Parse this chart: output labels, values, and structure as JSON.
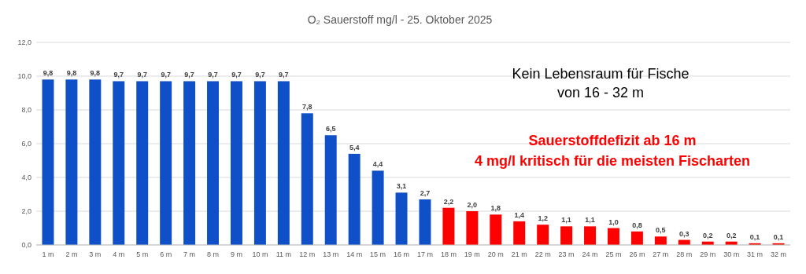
{
  "chart_data": {
    "type": "bar",
    "title": "O₂ Sauerstoff  mg/l - 25. Oktober 2025",
    "categories": [
      "1 m",
      "2 m",
      "3 m",
      "4 m",
      "5 m",
      "6 m",
      "7 m",
      "8 m",
      "9 m",
      "10 m",
      "11 m",
      "12 m",
      "13 m",
      "14 m",
      "15 m",
      "16 m",
      "17 m",
      "18 m",
      "19 m",
      "20 m",
      "21 m",
      "22 m",
      "23 m",
      "24 m",
      "25 m",
      "26 m",
      "27 m",
      "28 m",
      "29 m",
      "30 m",
      "31 m",
      "32 m"
    ],
    "values": [
      9.8,
      9.8,
      9.8,
      9.7,
      9.7,
      9.7,
      9.7,
      9.7,
      9.7,
      9.7,
      9.7,
      7.8,
      6.5,
      5.4,
      4.4,
      3.1,
      2.7,
      2.2,
      2.0,
      1.8,
      1.4,
      1.2,
      1.1,
      1.1,
      1.0,
      0.8,
      0.5,
      0.3,
      0.2,
      0.2,
      0.1,
      0.1
    ],
    "value_labels": [
      "9,8",
      "9,8",
      "9,8",
      "9,7",
      "9,7",
      "9,7",
      "9,7",
      "9,7",
      "9,7",
      "9,7",
      "9,7",
      "7,8",
      "6,5",
      "5,4",
      "4,4",
      "3,1",
      "2,7",
      "2,2",
      "2,0",
      "1,8",
      "1,4",
      "1,2",
      "1,1",
      "1,1",
      "1,0",
      "0,8",
      "0,5",
      "0,3",
      "0,2",
      "0,2",
      "0,1",
      "0,1"
    ],
    "colors": [
      "#0f4fc8",
      "#0f4fc8",
      "#0f4fc8",
      "#0f4fc8",
      "#0f4fc8",
      "#0f4fc8",
      "#0f4fc8",
      "#0f4fc8",
      "#0f4fc8",
      "#0f4fc8",
      "#0f4fc8",
      "#0f4fc8",
      "#0f4fc8",
      "#0f4fc8",
      "#0f4fc8",
      "#0f4fc8",
      "#0f4fc8",
      "#ff0000",
      "#ff0000",
      "#ff0000",
      "#ff0000",
      "#ff0000",
      "#ff0000",
      "#ff0000",
      "#ff0000",
      "#ff0000",
      "#ff0000",
      "#ff0000",
      "#ff0000",
      "#ff0000",
      "#ff0000",
      "#ff0000"
    ],
    "ylim": [
      0,
      12
    ],
    "yticks": [
      {
        "value": 0,
        "label": "0,0"
      },
      {
        "value": 2,
        "label": "2,0"
      },
      {
        "value": 4,
        "label": "4,0"
      },
      {
        "value": 6,
        "label": "6,0"
      },
      {
        "value": 8,
        "label": "8,0"
      },
      {
        "value": 10,
        "label": "10,0"
      },
      {
        "value": 12,
        "label": "12,0"
      }
    ],
    "grid": "y",
    "annotations": [
      "Kein Lebensraum für Fische",
      "von 16 - 32 m",
      "Sauerstoffdefizit ab 16 m",
      "4 mg/l kritisch für die meisten Fischarten"
    ]
  }
}
